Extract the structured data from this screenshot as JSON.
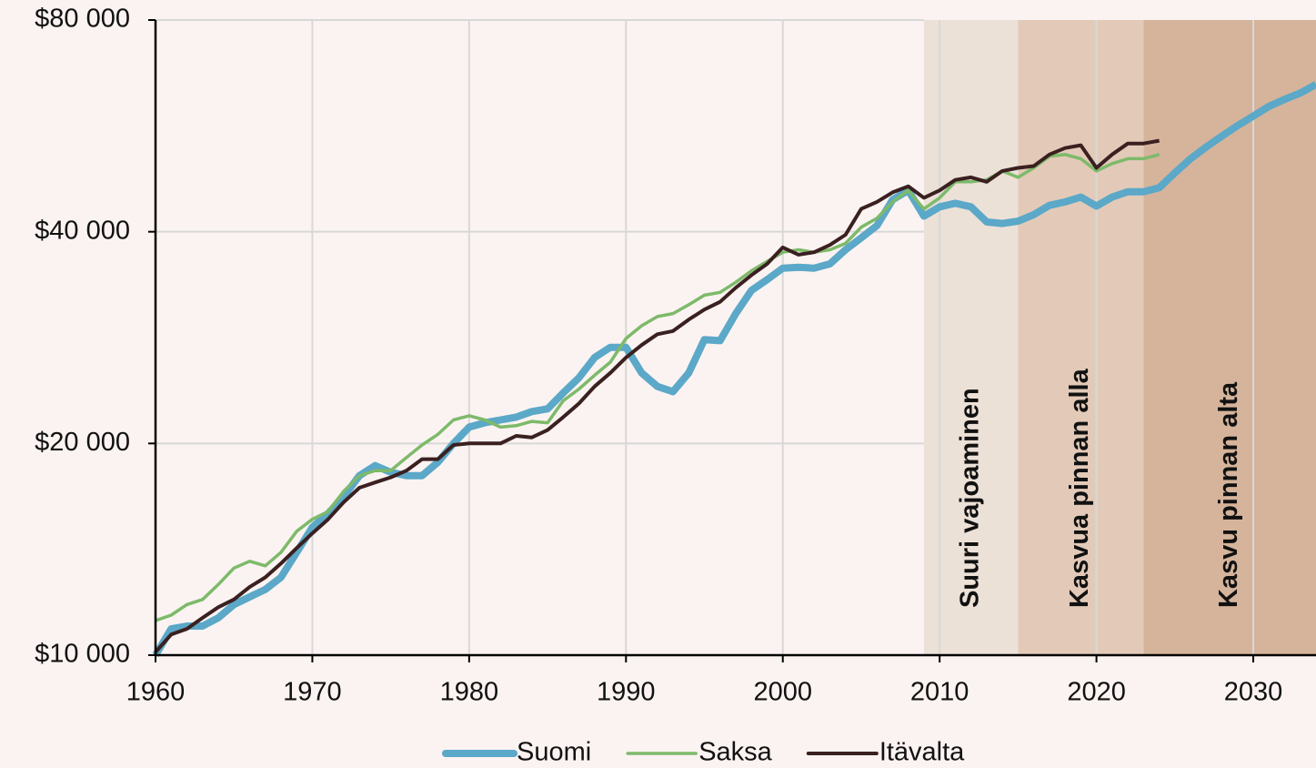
{
  "chart_data": {
    "type": "line",
    "x": [
      1960,
      1961,
      1962,
      1963,
      1964,
      1965,
      1966,
      1967,
      1968,
      1969,
      1970,
      1971,
      1972,
      1973,
      1974,
      1975,
      1976,
      1977,
      1978,
      1979,
      1980,
      1981,
      1982,
      1983,
      1984,
      1985,
      1986,
      1987,
      1988,
      1989,
      1990,
      1991,
      1992,
      1993,
      1994,
      1995,
      1996,
      1997,
      1998,
      1999,
      2000,
      2001,
      2002,
      2003,
      2004,
      2005,
      2006,
      2007,
      2008,
      2009,
      2010,
      2011,
      2012,
      2013,
      2014,
      2015,
      2016,
      2017,
      2018,
      2019,
      2020,
      2021,
      2022,
      2023,
      2024,
      2025,
      2026,
      2027,
      2028,
      2029,
      2030,
      2031,
      2032,
      2033,
      2034
    ],
    "series": [
      {
        "name": "Suomi",
        "color": "#5ba8c8",
        "values": [
          10000,
          10900,
          11000,
          11000,
          11300,
          11800,
          12100,
          12400,
          12900,
          14000,
          15200,
          15900,
          16800,
          18000,
          18600,
          18200,
          18000,
          18000,
          18800,
          20000,
          21100,
          21400,
          21600,
          21800,
          22200,
          22400,
          23600,
          24800,
          26500,
          27400,
          27400,
          25200,
          24100,
          23700,
          25200,
          28100,
          28000,
          30600,
          33000,
          34200,
          35500,
          35600,
          35500,
          36000,
          37700,
          39200,
          40800,
          44400,
          45800,
          42100,
          43400,
          43900,
          43400,
          41300,
          41100,
          41400,
          42300,
          43600,
          44100,
          44800,
          43500,
          44800,
          45600,
          45600,
          46200,
          48500,
          50800,
          52800,
          54700,
          56600,
          58400,
          60300,
          61700,
          63000,
          64800
        ]
      },
      {
        "name": "Saksa",
        "color": "#7dba6a",
        "values": [
          11200,
          11400,
          11800,
          12000,
          12600,
          13300,
          13600,
          13400,
          14000,
          15000,
          15600,
          16000,
          17100,
          18000,
          18300,
          18300,
          19100,
          19900,
          20600,
          21600,
          21900,
          21600,
          21100,
          21200,
          21500,
          21400,
          23000,
          23900,
          25000,
          26100,
          28200,
          29400,
          30300,
          30600,
          31500,
          32500,
          32800,
          33900,
          35200,
          36300,
          37400,
          37700,
          37400,
          37700,
          38500,
          40600,
          41800,
          44100,
          45800,
          43100,
          44700,
          47100,
          47100,
          47400,
          48800,
          47800,
          49300,
          51200,
          51500,
          50800,
          48800,
          50000,
          50800,
          50800,
          51500,
          null,
          null,
          null,
          null,
          null,
          null,
          null,
          null,
          null,
          null
        ]
      },
      {
        "name": "Itävalta",
        "color": "#3a2020",
        "values": [
          10100,
          10700,
          10900,
          11300,
          11700,
          12000,
          12500,
          12900,
          13500,
          14200,
          14900,
          15600,
          16500,
          17300,
          17600,
          17900,
          18300,
          19000,
          19000,
          19900,
          20000,
          20000,
          20000,
          20500,
          20400,
          20900,
          21800,
          22800,
          24100,
          25200,
          26500,
          27600,
          28600,
          28900,
          30000,
          31000,
          31800,
          33300,
          34700,
          36000,
          38000,
          37100,
          37400,
          38300,
          39600,
          43100,
          44100,
          45500,
          46400,
          44700,
          45800,
          47400,
          47800,
          47100,
          48800,
          49300,
          49600,
          51500,
          52600,
          53100,
          49300,
          51500,
          53400,
          53400,
          53900,
          null,
          null,
          null,
          null,
          null,
          null,
          null,
          null,
          null,
          null
        ]
      }
    ],
    "regions": [
      {
        "label": "Suuri vajoaminen",
        "start": 2009,
        "end": 2015,
        "color": "#ece1d7"
      },
      {
        "label": "Kasvua pinnan alla",
        "start": 2015,
        "end": 2023,
        "color": "#e3cab8"
      },
      {
        "label": "Kasvu pinnan alta",
        "start": 2023,
        "end": 2034,
        "color": "#d5b49b"
      }
    ],
    "xlim": [
      1960,
      2034
    ],
    "xticks": [
      1960,
      1970,
      1980,
      1990,
      2000,
      2010,
      2020,
      2030
    ],
    "ylim": [
      10000,
      80000
    ],
    "log_scale": true,
    "yticks": [
      {
        "value": 10000,
        "label": "$10 000"
      },
      {
        "value": 20000,
        "label": "$20 000"
      },
      {
        "value": 40000,
        "label": "$40 000"
      },
      {
        "value": 80000,
        "label": "$80 000"
      }
    ],
    "grid": true,
    "legend": "bottom"
  }
}
